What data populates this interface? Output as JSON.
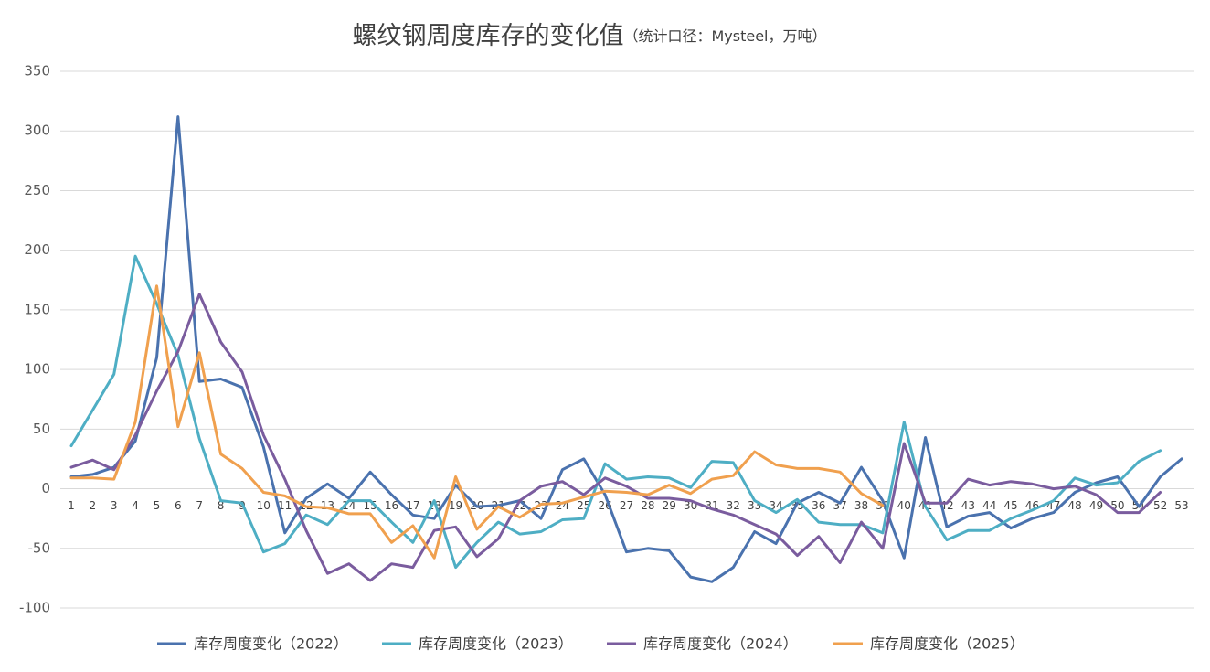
{
  "chart_data": {
    "type": "line",
    "title": "螺纹钢周度库存的变化值",
    "subtitle": "（统计口径：Mysteel，万吨）",
    "categories": [
      1,
      2,
      3,
      4,
      5,
      6,
      7,
      8,
      9,
      10,
      11,
      12,
      13,
      14,
      15,
      16,
      17,
      18,
      19,
      20,
      21,
      22,
      23,
      24,
      25,
      26,
      27,
      28,
      29,
      30,
      31,
      32,
      33,
      34,
      35,
      36,
      37,
      38,
      39,
      40,
      41,
      42,
      43,
      44,
      45,
      46,
      47,
      48,
      49,
      50,
      51,
      52,
      53
    ],
    "ylim": [
      -100,
      350
    ],
    "yticks": [
      -100,
      -50,
      0,
      50,
      100,
      150,
      200,
      250,
      300,
      350
    ],
    "grid": true,
    "series": [
      {
        "name": "库存周度变化（2022）",
        "color": "#4a72ae",
        "values": [
          10,
          12,
          18,
          40,
          110,
          312,
          90,
          92,
          85,
          35,
          -37,
          -8,
          4,
          -8,
          14,
          -5,
          -22,
          -25,
          3,
          -15,
          -14,
          -10,
          -25,
          16,
          25,
          -5,
          -53,
          -50,
          -52,
          -74,
          -78,
          -66,
          -36,
          -46,
          -12,
          -3,
          -12,
          18,
          -10,
          -58,
          43,
          -32,
          -23,
          -20,
          -33,
          -25,
          -20,
          -3,
          5,
          10,
          -15,
          10,
          25
        ]
      },
      {
        "name": "库存周度变化（2023）",
        "color": "#4eaec4",
        "values": [
          36,
          66,
          96,
          195,
          155,
          112,
          42,
          -10,
          -12,
          -53,
          -46,
          -22,
          -30,
          -10,
          -10,
          -28,
          -45,
          -10,
          -66,
          -45,
          -28,
          -38,
          -36,
          -26,
          -25,
          21,
          8,
          10,
          9,
          1,
          23,
          22,
          -10,
          -20,
          -9,
          -28,
          -30,
          -30,
          -37,
          56,
          -15,
          -43,
          -35,
          -35,
          -25,
          -18,
          -10,
          9,
          3,
          5,
          23,
          32,
          null
        ]
      },
      {
        "name": "库存周度变化（2024）",
        "color": "#7a5c9e",
        "values": [
          18,
          24,
          16,
          45,
          82,
          115,
          163,
          123,
          98,
          45,
          8,
          -35,
          -71,
          -63,
          -77,
          -63,
          -66,
          -35,
          -32,
          -57,
          -42,
          -10,
          2,
          6,
          -5,
          9,
          2,
          -8,
          -8,
          -10,
          -17,
          -22,
          -30,
          -38,
          -56,
          -40,
          -62,
          -28,
          -50,
          38,
          -12,
          -12,
          8,
          3,
          6,
          4,
          0,
          2,
          -5,
          -20,
          -20,
          -3,
          null
        ]
      },
      {
        "name": "库存周度变化（2025）",
        "color": "#f0a04e",
        "values": [
          9,
          9,
          8,
          56,
          170,
          52,
          114,
          29,
          17,
          -3,
          -6,
          -15,
          -16,
          -21,
          -21,
          -45,
          -31,
          -58,
          10,
          -34,
          -15,
          -24,
          -13,
          -12,
          -7,
          -2,
          -3,
          -5,
          3,
          -4,
          8,
          11,
          31,
          20,
          17,
          17,
          14,
          -4,
          -14,
          null,
          null,
          null,
          null,
          null,
          null,
          null,
          null,
          null,
          null,
          null,
          null,
          null,
          null
        ]
      }
    ]
  }
}
